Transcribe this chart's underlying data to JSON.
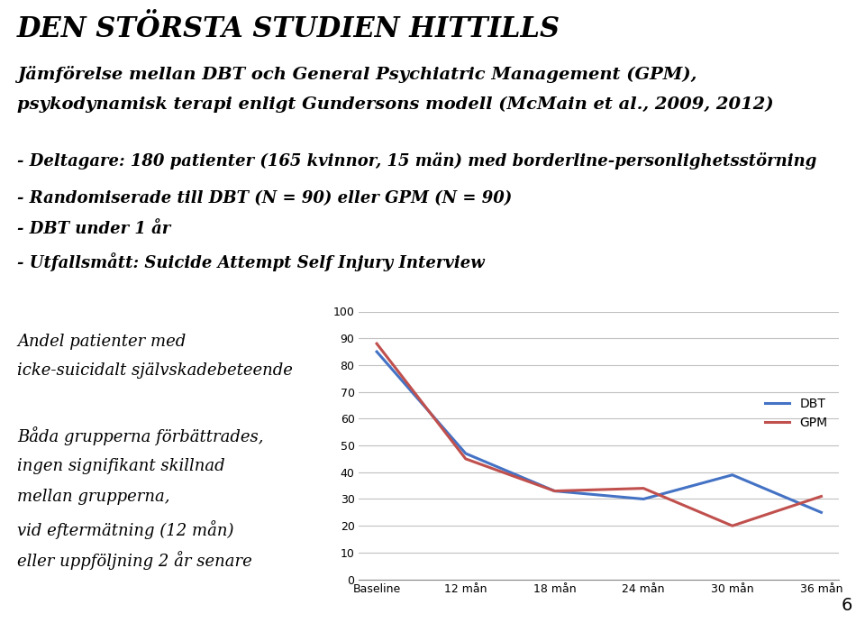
{
  "title": "DEN STÖRSTA STUDIEN HITTILLS",
  "subtitle_line1": "Jämförelse mellan DBT och General Psychiatric Management (GPM),",
  "subtitle_line2": "psykodynamisk terapi enligt Gundersons modell (McMain et al., 2009, 2012)",
  "bullets": [
    "- Deltagare: 180 patienter (165 kvinnor, 15 män) med borderline-personlighetsstörning",
    "- Randomiserade till DBT (N = 90) eller GPM (N = 90)",
    "- DBT under 1 år",
    "- Utfallsmått: Suicide Attempt Self Injury Interview"
  ],
  "left_text_line1": "Andel patienter med",
  "left_text_line2": "icke-suicidalt självskadebeteende",
  "bottom_text_lines": [
    "Båda grupperna förbättrades,",
    "ingen signifikant skillnad",
    "mellan grupperna,",
    "vid eftermätning (12 mån)",
    "eller uppföljning 2 år senare"
  ],
  "x_labels": [
    "Baseline",
    "12 mån",
    "18 mån",
    "24 mån",
    "30 mån",
    "36 mån"
  ],
  "dbt_values": [
    85,
    47,
    33,
    30,
    39,
    25
  ],
  "gpm_values": [
    88,
    45,
    33,
    34,
    20,
    31
  ],
  "dbt_color": "#4472C4",
  "gpm_color": "#C0504D",
  "ylim": [
    0,
    100
  ],
  "yticks": [
    0,
    10,
    20,
    30,
    40,
    50,
    60,
    70,
    80,
    90,
    100
  ],
  "page_number": "6",
  "background_color": "#FFFFFF",
  "title_fontsize": 22,
  "subtitle_fontsize": 14,
  "bullet_fontsize": 13,
  "body_fontsize": 13
}
